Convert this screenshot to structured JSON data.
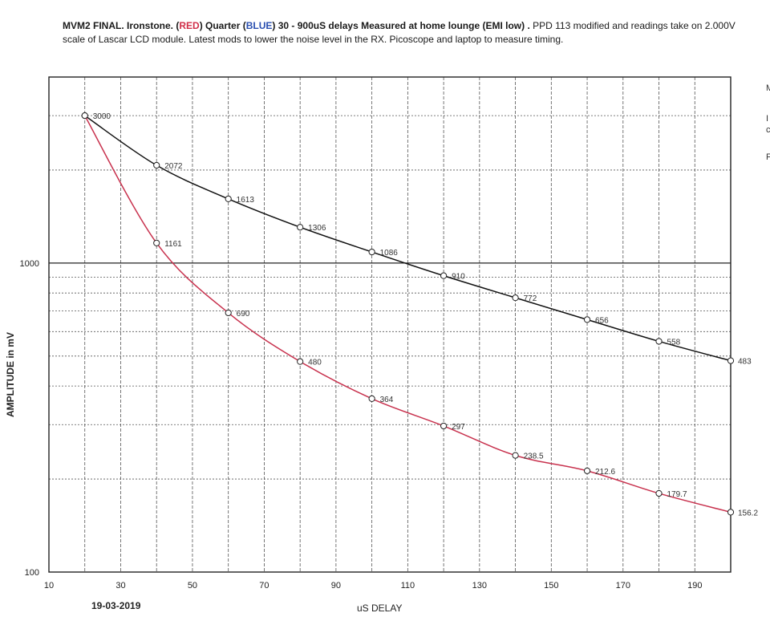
{
  "header": {
    "part1": "MVM2 FINAL.  Ironstone. (",
    "red_word": "RED",
    "part2": ") Quarter (",
    "blue_word": "BLUE",
    "part3": ")   30 - 900uS delays   Measured at home lounge (EMI low) . ",
    "part4": "PPD 113 modified and readings take on 2.000V scale of Lascar LCD module. Latest mods to lower the noise level in the RX. Picoscope and laptop to measure timing."
  },
  "side_notes": [
    "M",
    "I",
    "c",
    "F"
  ],
  "date": "19-03-2019",
  "colors": {
    "red": "#c8324e",
    "blue": "#2a4fb0",
    "black": "#111111",
    "grid": "#555555"
  },
  "chart_data": {
    "type": "line",
    "title": "MVM2 FINAL. Ironstone. (RED) Quarter (BLUE) 30 - 900uS delays",
    "xlabel": "uS DELAY",
    "ylabel": "AMPLITUDE in mV",
    "xlim": [
      10,
      200
    ],
    "ylim": [
      100,
      4000
    ],
    "yscale": "log",
    "x_ticks": [
      10,
      30,
      50,
      70,
      90,
      110,
      130,
      150,
      170,
      190
    ],
    "y_ticks": [
      100,
      1000
    ],
    "grid": true,
    "series": [
      {
        "color": "#111111",
        "x": [
          20,
          40,
          60,
          80,
          100,
          120,
          140,
          160,
          180,
          200
        ],
        "values": [
          3000,
          2072,
          1613,
          1306,
          1086,
          910,
          772,
          656,
          558,
          483
        ],
        "labels": [
          "3000",
          "2072",
          "1613",
          "1306",
          "1086",
          "910",
          "772",
          "656",
          "558",
          "483"
        ]
      },
      {
        "color": "#c8324e",
        "x": [
          20,
          40,
          60,
          80,
          100,
          120,
          140,
          160,
          180,
          200
        ],
        "values": [
          3000,
          1161,
          690,
          480,
          364,
          297,
          238.5,
          212.6,
          179.7,
          156.2
        ],
        "labels": [
          "",
          "1161",
          "690",
          "480",
          "364",
          "297",
          "238.5",
          "212.6",
          "179.7",
          "156.2"
        ]
      }
    ]
  }
}
